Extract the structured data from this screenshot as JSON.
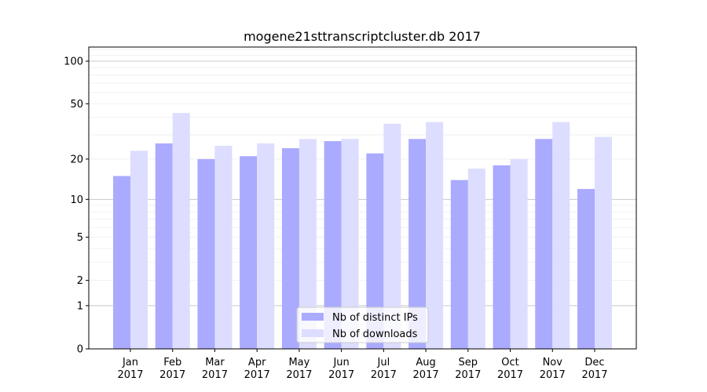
{
  "chart_data": {
    "type": "bar",
    "title": "mogene21sttranscriptcluster.db 2017",
    "xlabel": "",
    "ylabel": "",
    "yscale": "log(1+x)",
    "ylim": [
      0,
      120
    ],
    "yticks": [
      0,
      1,
      2,
      5,
      10,
      20,
      50,
      100
    ],
    "ytick_labels": [
      "0",
      "1",
      "2",
      "5",
      "10",
      "20",
      "50",
      "100"
    ],
    "grid": true,
    "legend_position": "bottom-center",
    "categories": [
      "Jan\n2017",
      "Feb\n2017",
      "Mar\n2017",
      "Apr\n2017",
      "May\n2017",
      "Jun\n2017",
      "Jul\n2017",
      "Aug\n2017",
      "Sep\n2017",
      "Oct\n2017",
      "Nov\n2017",
      "Dec\n2017"
    ],
    "category_months": [
      "Jan",
      "Feb",
      "Mar",
      "Apr",
      "May",
      "Jun",
      "Jul",
      "Aug",
      "Sep",
      "Oct",
      "Nov",
      "Dec"
    ],
    "category_year": "2017",
    "series": [
      {
        "name": "Nb of distinct IPs",
        "color": "#aaaaff",
        "values": [
          15,
          26,
          20,
          21,
          24,
          27,
          22,
          28,
          14,
          18,
          28,
          12
        ]
      },
      {
        "name": "Nb of downloads",
        "color": "#ddddff",
        "values": [
          23,
          43,
          25,
          26,
          28,
          28,
          36,
          37,
          17,
          20,
          37,
          29
        ]
      }
    ]
  }
}
